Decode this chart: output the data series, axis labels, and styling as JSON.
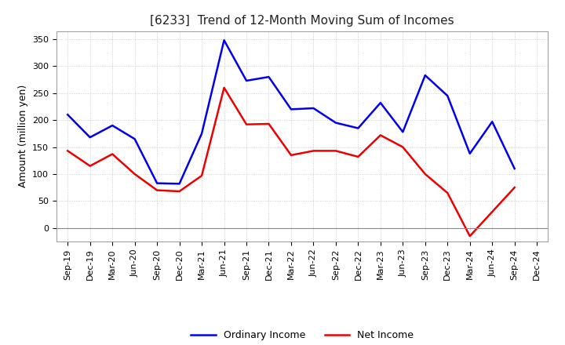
{
  "title": "[6233]  Trend of 12-Month Moving Sum of Incomes",
  "ylabel": "Amount (million yen)",
  "labels": [
    "Sep-19",
    "Dec-19",
    "Mar-20",
    "Jun-20",
    "Sep-20",
    "Dec-20",
    "Mar-21",
    "Jun-21",
    "Sep-21",
    "Dec-21",
    "Mar-22",
    "Jun-22",
    "Sep-22",
    "Dec-22",
    "Mar-23",
    "Jun-23",
    "Sep-23",
    "Dec-23",
    "Mar-24",
    "Jun-24",
    "Sep-24",
    "Dec-24"
  ],
  "ordinary_income": [
    210,
    168,
    190,
    165,
    83,
    82,
    175,
    348,
    273,
    280,
    220,
    222,
    195,
    185,
    232,
    178,
    283,
    245,
    138,
    197,
    110,
    null
  ],
  "net_income": [
    143,
    115,
    137,
    100,
    70,
    68,
    97,
    260,
    192,
    193,
    135,
    143,
    143,
    132,
    172,
    150,
    100,
    65,
    -15,
    30,
    75,
    null
  ],
  "ordinary_color": "#0000EE",
  "net_color": "#EE0000",
  "ylim": [
    -25,
    365
  ],
  "yticks": [
    0,
    50,
    100,
    150,
    200,
    250,
    300,
    350
  ],
  "background_color": "#FFFFFF",
  "grid_color": "#BBBBBB",
  "title_fontsize": 11,
  "axis_label_fontsize": 9,
  "tick_fontsize": 8,
  "legend_fontsize": 9,
  "line_width": 1.8
}
